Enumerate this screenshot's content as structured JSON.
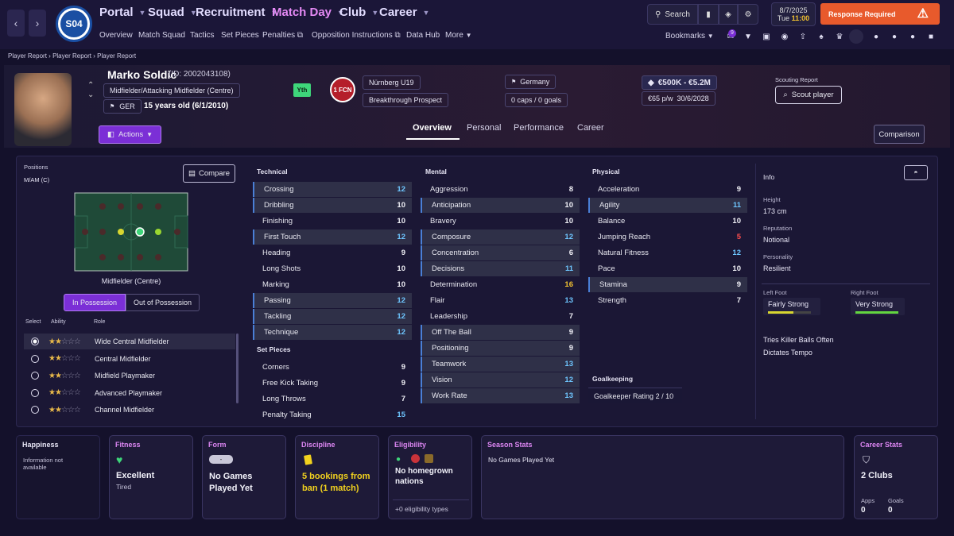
{
  "nav": {
    "back": "‹",
    "forward": "›",
    "club_short": "S04",
    "main": [
      {
        "label": "Portal",
        "active": false
      },
      {
        "label": "Squad",
        "active": false
      },
      {
        "label": "Recruitment",
        "active": false
      },
      {
        "label": "Match Day",
        "active": true
      },
      {
        "label": "Club",
        "active": false
      },
      {
        "label": "Career",
        "active": false
      }
    ],
    "sub": [
      "Overview",
      "Match Squad",
      "Tactics",
      "Set Pieces",
      "Penalties",
      "Opposition Instructions",
      "Data Hub",
      "More"
    ],
    "search_label": "Search",
    "date": "8/7/2025",
    "day": "Tue",
    "time": "11:00",
    "response_label": "Response Required",
    "bookmarks_label": "Bookmarks",
    "notification_count": "9"
  },
  "breadcrumb": [
    "Player Report",
    "Player Report",
    "Player Report"
  ],
  "player": {
    "name": "Marko Soldic",
    "id": "(ID: 2002043108)",
    "position": "Midfielder/Attacking Midfielder (Centre)",
    "nation_code": "GER",
    "age": "15 years old (6/1/2010)",
    "youth_badge": "Yth",
    "club_badge": "1 FCN",
    "club": "Nürnberg U19",
    "status": "Breakthrough Prospect",
    "nationality": "Germany",
    "caps": "0 caps / 0 goals",
    "value": "€500K - €5.2M",
    "wage": "€65 p/w",
    "contract": "30/6/2028",
    "actions_label": "Actions",
    "scouting_label": "Scouting Report",
    "scout_button": "Scout player"
  },
  "tabs": [
    "Overview",
    "Personal",
    "Performance",
    "Career"
  ],
  "comparison_label": "Comparison",
  "positions": {
    "title": "Positions",
    "current": "M/AM (C)",
    "compare_label": "Compare",
    "pitch_label": "Midfielder (Centre)",
    "in_possession": "In Possession",
    "out_possession": "Out of Possession",
    "headers": [
      "Select",
      "Ability",
      "Role"
    ],
    "roles": [
      {
        "name": "Wide Central Midfielder",
        "stars": 2,
        "selected": true
      },
      {
        "name": "Central Midfielder",
        "stars": 2,
        "selected": false
      },
      {
        "name": "Midfield Playmaker",
        "stars": 2,
        "selected": false
      },
      {
        "name": "Advanced Playmaker",
        "stars": 2,
        "selected": false
      },
      {
        "name": "Channel Midfielder",
        "stars": 2,
        "selected": false
      }
    ]
  },
  "technical": {
    "title": "Technical",
    "rows": [
      {
        "name": "Crossing",
        "value": "12",
        "hl": true
      },
      {
        "name": "Dribbling",
        "value": "10",
        "hl": true
      },
      {
        "name": "Finishing",
        "value": "10",
        "hl": false
      },
      {
        "name": "First Touch",
        "value": "12",
        "hl": true
      },
      {
        "name": "Heading",
        "value": "9",
        "hl": false
      },
      {
        "name": "Long Shots",
        "value": "10",
        "hl": false
      },
      {
        "name": "Marking",
        "value": "10",
        "hl": false
      },
      {
        "name": "Passing",
        "value": "12",
        "hl": true
      },
      {
        "name": "Tackling",
        "value": "12",
        "hl": true
      },
      {
        "name": "Technique",
        "value": "12",
        "hl": true
      }
    ]
  },
  "set_pieces": {
    "title": "Set Pieces",
    "rows": [
      {
        "name": "Corners",
        "value": "9",
        "hl": false
      },
      {
        "name": "Free Kick Taking",
        "value": "9",
        "hl": false
      },
      {
        "name": "Long Throws",
        "value": "7",
        "hl": false
      },
      {
        "name": "Penalty Taking",
        "value": "15",
        "hl": false
      }
    ]
  },
  "mental": {
    "title": "Mental",
    "rows": [
      {
        "name": "Aggression",
        "value": "8",
        "hl": false
      },
      {
        "name": "Anticipation",
        "value": "10",
        "hl": true
      },
      {
        "name": "Bravery",
        "value": "10",
        "hl": false
      },
      {
        "name": "Composure",
        "value": "12",
        "hl": true
      },
      {
        "name": "Concentration",
        "value": "6",
        "hl": true
      },
      {
        "name": "Decisions",
        "value": "11",
        "hl": true
      },
      {
        "name": "Determination",
        "value": "16",
        "hl": false
      },
      {
        "name": "Flair",
        "value": "13",
        "hl": false
      },
      {
        "name": "Leadership",
        "value": "7",
        "hl": false
      },
      {
        "name": "Off The Ball",
        "value": "9",
        "hl": true
      },
      {
        "name": "Positioning",
        "value": "9",
        "hl": true
      },
      {
        "name": "Teamwork",
        "value": "13",
        "hl": true
      },
      {
        "name": "Vision",
        "value": "12",
        "hl": true
      },
      {
        "name": "Work Rate",
        "value": "13",
        "hl": true
      }
    ]
  },
  "physical": {
    "title": "Physical",
    "rows": [
      {
        "name": "Acceleration",
        "value": "9",
        "hl": false
      },
      {
        "name": "Agility",
        "value": "11",
        "hl": true
      },
      {
        "name": "Balance",
        "value": "10",
        "hl": false
      },
      {
        "name": "Jumping Reach",
        "value": "5",
        "hl": false
      },
      {
        "name": "Natural Fitness",
        "value": "12",
        "hl": false
      },
      {
        "name": "Pace",
        "value": "10",
        "hl": false
      },
      {
        "name": "Stamina",
        "value": "9",
        "hl": true
      },
      {
        "name": "Strength",
        "value": "7",
        "hl": false
      }
    ]
  },
  "goalkeeping": {
    "title": "Goalkeeping",
    "rating": "Goalkeeper Rating",
    "value": "2 / 10"
  },
  "info": {
    "title": "Info",
    "height_label": "Height",
    "height": "173 cm",
    "reputation_label": "Reputation",
    "reputation": "Notional",
    "personality_label": "Personality",
    "personality": "Resilient",
    "left_foot_label": "Left Foot",
    "left_foot": "Fairly Strong",
    "left_foot_level": 0.6,
    "right_foot_label": "Right Foot",
    "right_foot": "Very Strong",
    "right_foot_level": 1,
    "traits": [
      "Tries Killer Balls Often",
      "Dictates Tempo"
    ]
  },
  "cards": {
    "happiness": {
      "title": "Happiness",
      "text": "Information not available"
    },
    "fitness": {
      "title": "Fitness",
      "value": "Excellent",
      "sub": "Tired"
    },
    "form": {
      "title": "Form",
      "badge": "-",
      "value": "No Games Played Yet"
    },
    "discipline": {
      "title": "Discipline",
      "value": "5 bookings from ban (1 match)"
    },
    "eligibility": {
      "title": "Eligibility",
      "value": "No homegrown nations",
      "sub": "+0 eligibility types"
    },
    "season": {
      "title": "Season Stats",
      "value": "No Games Played Yet"
    },
    "career": {
      "title": "Career Stats",
      "value": "2 Clubs",
      "apps_label": "Apps",
      "apps": "0",
      "goals_label": "Goals",
      "goals": "0"
    }
  },
  "colors": {
    "accent": "#7b2fd6",
    "good": "#6ec6ff",
    "green": "#63e6a0",
    "yellow": "#f2c230",
    "red": "#ff4d4d",
    "response": "#e85a2c"
  }
}
